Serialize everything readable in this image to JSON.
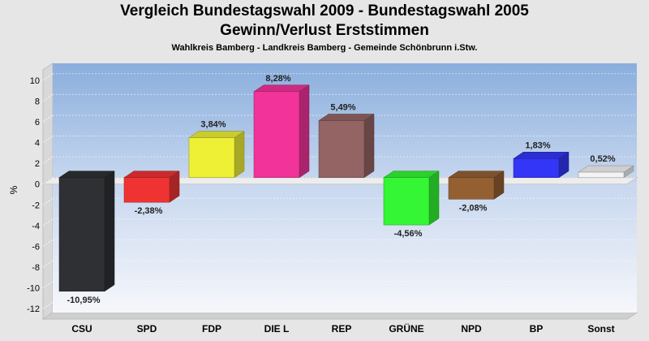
{
  "title": "Vergleich Bundestagswahl 2009 - Bundestagswahl 2005",
  "subtitle": "Gewinn/Verlust Erststimmen",
  "subsubtitle": "Wahlkreis Bamberg - Landkreis Bamberg - Gemeinde Schönbrunn i.Stw.",
  "chart_data": {
    "type": "bar",
    "title": "Vergleich Bundestagswahl 2009 - Bundestagswahl 2005",
    "subtitle": "Gewinn/Verlust Erststimmen",
    "xlabel": "",
    "ylabel": "%",
    "ylim": [
      -13,
      11
    ],
    "yticks": [
      "10",
      "8",
      "6",
      "4",
      "2",
      "0",
      "-2",
      "-4",
      "-6",
      "-8",
      "-10",
      "-12"
    ],
    "grid": true,
    "categories": [
      "CSU",
      "SPD",
      "FDP",
      "DIE L",
      "REP",
      "GRÜNE",
      "NPD",
      "BP",
      "Sonst"
    ],
    "values": [
      -10.95,
      -2.38,
      3.84,
      8.28,
      5.49,
      -4.56,
      -2.08,
      1.83,
      0.52
    ],
    "value_labels": [
      "-10,95%",
      "-2,38%",
      "3,84%",
      "8,28%",
      "5,49%",
      "-4,56%",
      "-2,08%",
      "1,83%",
      "0,52%"
    ],
    "colors": [
      "#2e3033",
      "#ef3333",
      "#eef035",
      "#f2339a",
      "#946464",
      "#34f634",
      "#946032",
      "#3336f6",
      "#f4f4f4"
    ]
  }
}
